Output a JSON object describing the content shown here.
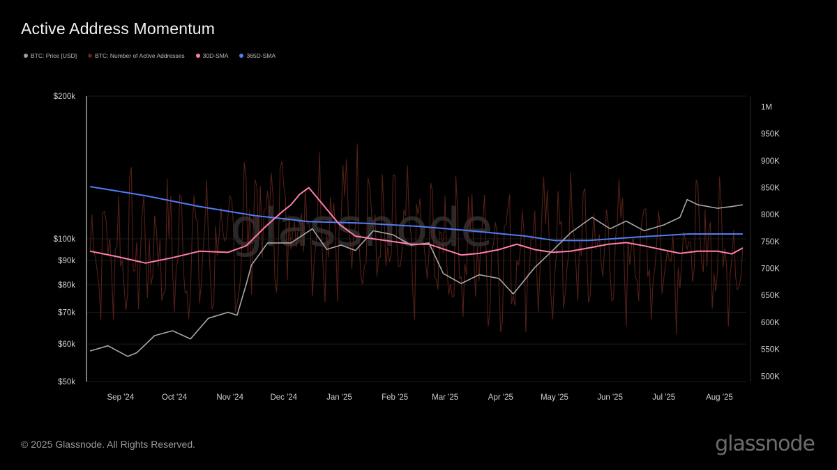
{
  "header": {
    "title": "Active Address Momentum"
  },
  "legend": [
    {
      "label": "BTC: Price [USD]",
      "color": "#9e9e9e"
    },
    {
      "label": "BTC: Number of Active Addresses",
      "color": "#5c2418"
    },
    {
      "label": "30D-SMA",
      "color": "#ff7eb0"
    },
    {
      "label": "365D-SMA",
      "color": "#4f7df5"
    }
  ],
  "watermark": "glassnode",
  "footer": {
    "copyright": "© 2025 Glassnode. All Rights Reserved.",
    "logo": "glassnode"
  },
  "chart_data": {
    "type": "line",
    "x_ticks": [
      "Sep '24",
      "Oct '24",
      "Nov '24",
      "Dec '24",
      "Jan '25",
      "Feb '25",
      "Mar '25",
      "Apr '25",
      "May '25",
      "Jun '25",
      "Jul '25",
      "Aug '25"
    ],
    "left_axis": {
      "scale": "log",
      "range": [
        50000,
        200000
      ],
      "ticks": [
        "$200k",
        "$100k",
        "$90k",
        "$80k",
        "$70k",
        "$60k",
        "$50k"
      ],
      "tick_values": [
        200000,
        100000,
        90000,
        80000,
        70000,
        60000,
        50000
      ]
    },
    "right_axis": {
      "scale": "linear",
      "range": [
        490000,
        1020000
      ],
      "ticks": [
        "1M",
        "950K",
        "900K",
        "850K",
        "800K",
        "750K",
        "700K",
        "650K",
        "600K",
        "550K",
        "500K"
      ],
      "tick_values": [
        1000000,
        950000,
        900000,
        850000,
        800000,
        750000,
        700000,
        650000,
        600000,
        550000,
        500000
      ]
    },
    "series": [
      {
        "name": "BTC: Price [USD]",
        "axis": "left",
        "color": "#a8a8a8",
        "x": [
          "2024-08-15",
          "2024-08-25",
          "2024-09-05",
          "2024-09-10",
          "2024-09-20",
          "2024-09-30",
          "2024-10-10",
          "2024-10-20",
          "2024-10-31",
          "2024-11-05",
          "2024-11-10",
          "2024-11-13",
          "2024-11-22",
          "2024-12-05",
          "2024-12-17",
          "2024-12-25",
          "2025-01-02",
          "2025-01-10",
          "2025-01-20",
          "2025-01-31",
          "2025-02-10",
          "2025-02-20",
          "2025-02-28",
          "2025-03-10",
          "2025-03-20",
          "2025-03-31",
          "2025-04-08",
          "2025-04-20",
          "2025-04-30",
          "2025-05-10",
          "2025-05-22",
          "2025-06-01",
          "2025-06-10",
          "2025-06-20",
          "2025-07-01",
          "2025-07-10",
          "2025-07-14",
          "2025-07-20",
          "2025-07-31",
          "2025-08-08",
          "2025-08-14"
        ],
        "values": [
          58000,
          59500,
          56500,
          57500,
          62500,
          64000,
          61500,
          68000,
          70000,
          69000,
          80000,
          88000,
          98000,
          98000,
          105000,
          95000,
          97000,
          94500,
          104000,
          102000,
          97000,
          98000,
          84500,
          80500,
          84000,
          82500,
          76500,
          87000,
          94500,
          103000,
          111000,
          105000,
          109000,
          104000,
          107000,
          111000,
          121000,
          118000,
          116000,
          117000,
          118000
        ]
      },
      {
        "name": "30D-SMA",
        "axis": "right",
        "color": "#ff7eb0",
        "x": [
          "2024-08-15",
          "2024-08-30",
          "2024-09-15",
          "2024-09-30",
          "2024-10-15",
          "2024-10-31",
          "2024-11-10",
          "2024-11-20",
          "2024-11-30",
          "2024-12-05",
          "2024-12-10",
          "2024-12-15",
          "2024-12-20",
          "2024-12-25",
          "2025-01-01",
          "2025-01-10",
          "2025-01-20",
          "2025-01-31",
          "2025-02-10",
          "2025-02-20",
          "2025-03-01",
          "2025-03-10",
          "2025-03-20",
          "2025-03-31",
          "2025-04-10",
          "2025-04-20",
          "2025-04-30",
          "2025-05-10",
          "2025-05-20",
          "2025-05-31",
          "2025-06-10",
          "2025-06-20",
          "2025-06-30",
          "2025-07-10",
          "2025-07-20",
          "2025-07-31",
          "2025-08-08",
          "2025-08-14"
        ],
        "values": [
          732000,
          722000,
          710000,
          720000,
          732000,
          730000,
          742000,
          775000,
          805000,
          818000,
          838000,
          850000,
          830000,
          810000,
          782000,
          760000,
          755000,
          750000,
          745000,
          745000,
          735000,
          725000,
          728000,
          735000,
          745000,
          735000,
          730000,
          732000,
          738000,
          745000,
          748000,
          742000,
          735000,
          728000,
          732000,
          732000,
          727000,
          738000
        ]
      },
      {
        "name": "365D-SMA",
        "axis": "right",
        "color": "#4f7df5",
        "x": [
          "2024-08-15",
          "2024-09-15",
          "2024-10-15",
          "2024-11-15",
          "2024-12-15",
          "2025-01-15",
          "2025-02-15",
          "2025-03-15",
          "2025-04-15",
          "2025-05-01",
          "2025-05-20",
          "2025-06-15",
          "2025-07-15",
          "2025-08-14"
        ],
        "values": [
          852000,
          835000,
          815000,
          798000,
          787000,
          784000,
          778000,
          770000,
          760000,
          752000,
          752000,
          758000,
          764000,
          764000
        ]
      },
      {
        "name": "BTC: Number of Active Addresses",
        "axis": "right",
        "color": "#5c2418",
        "x": [
          "2024-08-15",
          "2025-08-14"
        ],
        "range": [
          520000,
          980000
        ],
        "mean": 735000,
        "points": 365
      }
    ]
  }
}
